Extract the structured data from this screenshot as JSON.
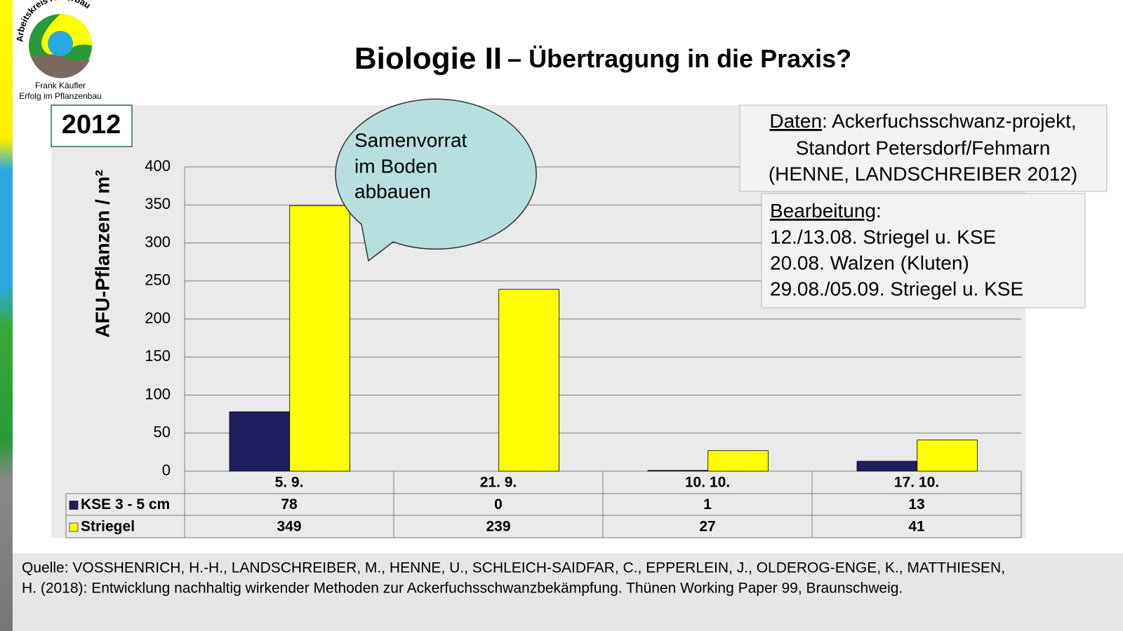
{
  "logo": {
    "arc_text": "Arbeitskreis Ackerbau",
    "line1": "Frank  Käufler",
    "line2": "Erfolg im Pflanzenbau"
  },
  "title": {
    "main": "Biologie II",
    "rest": "– Übertragung in die Praxis?"
  },
  "year": "2012",
  "callout": {
    "lines": [
      "Samenvorrat",
      "im Boden",
      "abbauen"
    ]
  },
  "data_box": {
    "label": "Daten",
    "text": ": Ackerfuchsschwanz-projekt,",
    "lines": [
      "Standort Petersdorf/Fehmarn",
      "(HENNE, LANDSCHREIBER 2012)"
    ]
  },
  "processing_box": {
    "label": "Bearbeitung",
    "colon": ":",
    "lines": [
      "12./13.08. Striegel u. KSE",
      "20.08. Walzen (Kluten)",
      "29.08./05.09. Striegel u. KSE"
    ]
  },
  "source": {
    "lines": [
      "Quelle: VOSSHENRICH, H.-H., LANDSCHREIBER, M., HENNE, U., SCHLEICH-SAIDFAR, C., EPPERLEIN, J., OLDEROG-ENGE, K., MATTHIESEN,",
      "H. (2018): Entwicklung nachhaltig wirkender Methoden zur Ackerfuchsschwanzbekämpfung. Thünen Working Paper 99, Braunschweig."
    ]
  },
  "chart_data": {
    "type": "bar",
    "y_label": "AFU-Pflanzen / m²",
    "categories": [
      "5. 9.",
      "21. 9.",
      "10. 10.",
      "17. 10."
    ],
    "series": [
      {
        "name": "KSE 3 - 5 cm",
        "color": "#1f1f5f",
        "values": [
          78,
          0,
          1,
          13
        ]
      },
      {
        "name": "Striegel",
        "color": "#ffff00",
        "values": [
          349,
          239,
          27,
          41
        ]
      }
    ],
    "ylim": [
      0,
      400
    ],
    "yticks": [
      0,
      50,
      100,
      150,
      200,
      250,
      300,
      350,
      400
    ],
    "grid": true
  }
}
